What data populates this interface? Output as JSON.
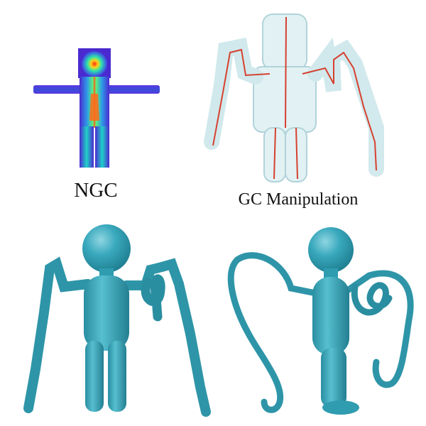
{
  "captions": {
    "ngc": "NGC",
    "gc_manipulation": "GC Manipulation"
  },
  "colors": {
    "mesh_teal": "#3aa9bd",
    "mesh_shadow": "#1f7f92",
    "mesh_highlight": "#8fd6e2",
    "glass_fill": "#dff0f2",
    "glass_stroke": "#a9cfd6",
    "curve_red": "#d6402f",
    "heat_low": "#3b32d6",
    "heat_mid": "#19e0c0",
    "heat_high": "#ff2a10"
  }
}
